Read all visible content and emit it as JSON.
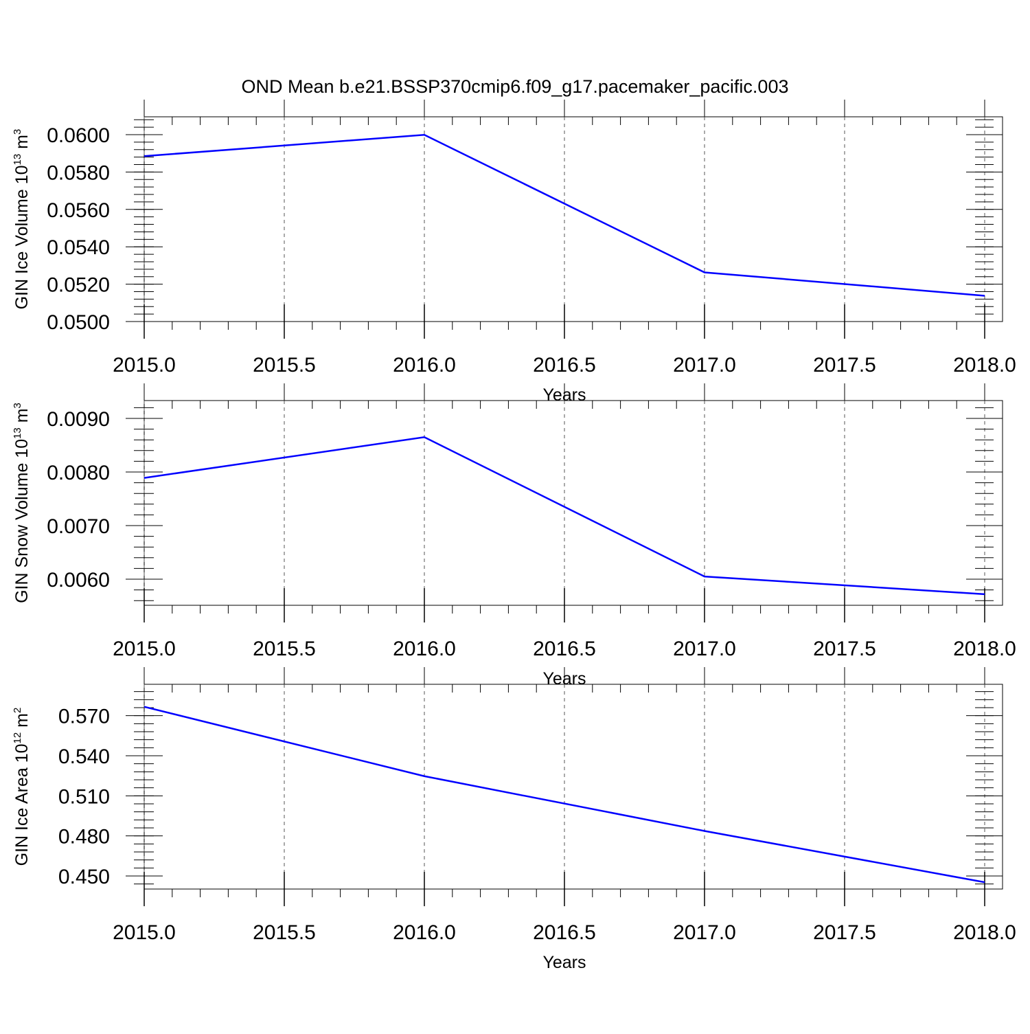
{
  "title": "OND Mean b.e21.BSSP370cmip6.f09_g17.pacemaker_pacific.003",
  "colors": {
    "line": "#0000ff",
    "axis": "#000000",
    "grid": "#555555"
  },
  "chart_data": [
    {
      "type": "line",
      "xlabel": "Years",
      "ylabel": {
        "text": "GIN Ice Volume 10",
        "exp1": "13",
        "unit": " m",
        "exp2": "3"
      },
      "xlim": [
        2015.0,
        2018.0
      ],
      "ylim": [
        0.05,
        0.06
      ],
      "xticks": [
        "2015.0",
        "2015.5",
        "2016.0",
        "2016.5",
        "2017.0",
        "2017.5",
        "2018.0"
      ],
      "yticks": [
        "0.0500",
        "0.0520",
        "0.0540",
        "0.0560",
        "0.0580",
        "0.0600"
      ],
      "ytick_values": [
        0.05,
        0.052,
        0.054,
        0.056,
        0.058,
        0.06
      ],
      "grid_x": true,
      "series": [
        {
          "x": [
            2015,
            2016,
            2017,
            2018
          ],
          "y": [
            0.05885,
            0.05999,
            0.05263,
            0.05138
          ]
        }
      ]
    },
    {
      "type": "line",
      "xlabel": "Years",
      "ylabel": {
        "text": "GIN Snow Volume 10",
        "exp1": "13",
        "unit": " m",
        "exp2": "3"
      },
      "xlim": [
        2015.0,
        2018.0
      ],
      "ylim": [
        0.0055,
        0.009
      ],
      "xticks": [
        "2015.0",
        "2015.5",
        "2016.0",
        "2016.5",
        "2017.0",
        "2017.5",
        "2018.0"
      ],
      "yticks": [
        "0.0060",
        "0.0070",
        "0.0080",
        "0.0090"
      ],
      "ytick_values": [
        0.006,
        0.007,
        0.008,
        0.009
      ],
      "grid_x": true,
      "series": [
        {
          "x": [
            2015,
            2016,
            2017,
            2018
          ],
          "y": [
            0.00789,
            0.00865,
            0.00605,
            0.00572
          ]
        }
      ]
    },
    {
      "type": "line",
      "xlabel": "Years",
      "ylabel": {
        "text": "GIN Ice Area 10",
        "exp1": "12",
        "unit": " m",
        "exp2": "2"
      },
      "xlim": [
        2015.0,
        2018.0
      ],
      "ylim": [
        0.44,
        0.58
      ],
      "xticks": [
        "2015.0",
        "2015.5",
        "2016.0",
        "2016.5",
        "2017.0",
        "2017.5",
        "2018.0"
      ],
      "yticks": [
        "0.450",
        "0.480",
        "0.510",
        "0.540",
        "0.570"
      ],
      "ytick_values": [
        0.45,
        0.48,
        0.51,
        0.54,
        0.57
      ],
      "grid_x": true,
      "series": [
        {
          "x": [
            2015,
            2016,
            2017,
            2018
          ],
          "y": [
            0.5767,
            0.5247,
            0.4837,
            0.4453
          ]
        }
      ]
    }
  ]
}
